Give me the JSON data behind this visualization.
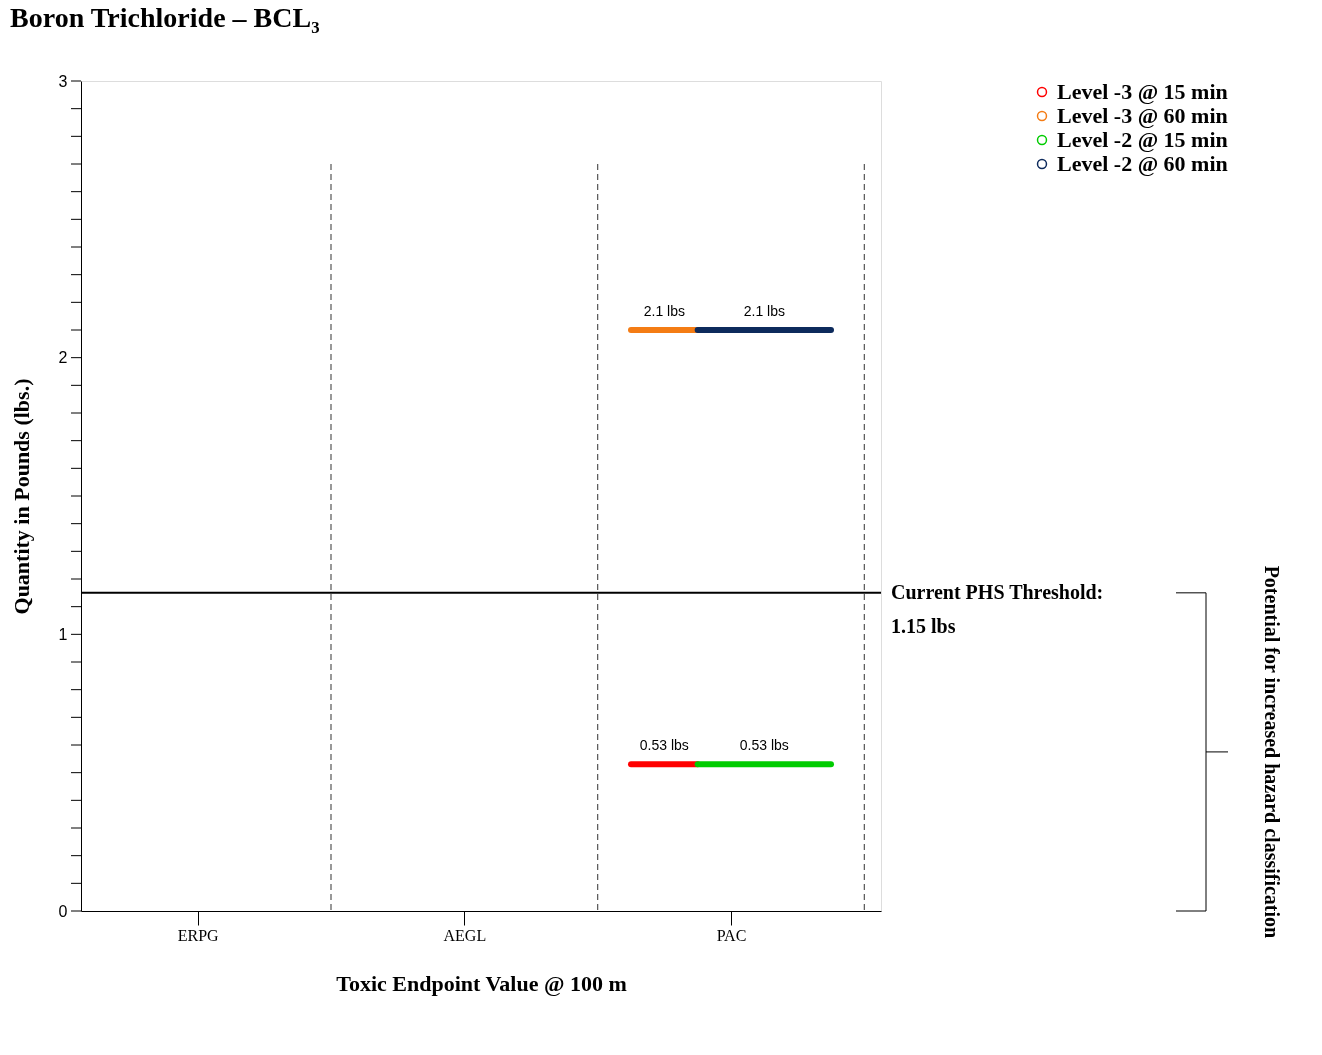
{
  "chart_data": {
    "type": "line",
    "title": "Boron Trichloride – BCL₃",
    "xlabel": "Toxic Endpoint Value @ 100 m",
    "ylabel": "Quantity in Pounds (lbs.)",
    "categories": [
      null,
      null,
      null,
      "ERPG",
      null,
      null,
      null,
      null,
      null,
      null,
      null,
      "AEGL",
      null,
      null,
      null,
      null,
      null,
      null,
      null,
      "PAC",
      null,
      null,
      null,
      null
    ],
    "series": [
      {
        "name": "Level -3 @ 15 min",
        "color": "#ff0000",
        "values": [
          null,
          null,
          null,
          null,
          null,
          null,
          null,
          null,
          null,
          null,
          null,
          null,
          null,
          null,
          null,
          null,
          0.53,
          0.53,
          0.53,
          null,
          null,
          null,
          null,
          null
        ],
        "value_labels": [
          null,
          null,
          null,
          null,
          null,
          null,
          null,
          null,
          null,
          null,
          null,
          null,
          null,
          null,
          null,
          null,
          null,
          "0.53 lbs",
          null,
          null,
          null,
          null,
          null,
          null
        ]
      },
      {
        "name": "Level -3 @ 60 min",
        "color": "#f47c14",
        "values": [
          null,
          null,
          null,
          null,
          null,
          null,
          null,
          null,
          null,
          null,
          null,
          null,
          null,
          null,
          null,
          null,
          2.1,
          2.1,
          2.1,
          null,
          null,
          null,
          null,
          null
        ],
        "value_labels": [
          null,
          null,
          null,
          null,
          null,
          null,
          null,
          null,
          null,
          null,
          null,
          null,
          null,
          null,
          null,
          null,
          null,
          "2.1 lbs",
          null,
          null,
          null,
          null,
          null,
          null
        ]
      },
      {
        "name": "Level -2 @ 15 min",
        "color": "#00cc00",
        "values": [
          null,
          null,
          null,
          null,
          null,
          null,
          null,
          null,
          null,
          null,
          null,
          null,
          null,
          null,
          null,
          null,
          null,
          null,
          0.53,
          0.53,
          0.53,
          0.53,
          0.53,
          null
        ],
        "value_labels": [
          null,
          null,
          null,
          null,
          null,
          null,
          null,
          null,
          null,
          null,
          null,
          null,
          null,
          null,
          null,
          null,
          null,
          null,
          null,
          null,
          "0.53 lbs",
          null,
          null,
          null
        ]
      },
      {
        "name": "Level -2 @ 60 min",
        "color": "#0d2a5c",
        "values": [
          null,
          null,
          null,
          null,
          null,
          null,
          null,
          null,
          null,
          null,
          null,
          null,
          null,
          null,
          null,
          null,
          null,
          null,
          2.1,
          2.1,
          2.1,
          2.1,
          2.1,
          null
        ],
        "value_labels": [
          null,
          null,
          null,
          null,
          null,
          null,
          null,
          null,
          null,
          null,
          null,
          null,
          null,
          null,
          null,
          null,
          null,
          null,
          null,
          null,
          "2.1 lbs",
          null,
          null,
          null
        ]
      }
    ],
    "ylim": [
      0,
      3
    ],
    "yticks": [
      0,
      {
        "value": 0.1,
        "label": null
      },
      {
        "value": 0.2,
        "label": null
      },
      {
        "value": 0.3,
        "label": null
      },
      {
        "value": 0.4,
        "label": null
      },
      {
        "value": 0.5,
        "label": null
      },
      {
        "value": 0.6,
        "label": null
      },
      {
        "value": 0.7,
        "label": null
      },
      {
        "value": 0.8,
        "label": null
      },
      {
        "value": 0.9,
        "label": null
      },
      1,
      {
        "value": 1.1,
        "label": null
      },
      {
        "value": 1.2,
        "label": null
      },
      {
        "value": 1.3,
        "label": null
      },
      {
        "value": 1.4,
        "label": null
      },
      {
        "value": 1.5,
        "label": null
      },
      {
        "value": 1.6,
        "label": null
      },
      {
        "value": 1.7,
        "label": null
      },
      {
        "value": 1.8,
        "label": null
      },
      {
        "value": 1.9,
        "label": null
      },
      2,
      {
        "value": 2.1,
        "label": null
      },
      {
        "value": 2.2,
        "label": null
      },
      {
        "value": 2.3,
        "label": null
      },
      {
        "value": 2.4,
        "label": null
      },
      {
        "value": 2.5,
        "label": null
      },
      {
        "value": 2.6,
        "label": null
      },
      {
        "value": 2.7,
        "label": null
      },
      {
        "value": 2.8,
        "label": null
      },
      {
        "value": 2.9,
        "label": null
      },
      3
    ],
    "ref_lines": [
      {
        "axis": "y",
        "value": 1.15,
        "label": "Current PHS Threshold:\n1.15 lbs",
        "color": "#000000"
      }
    ],
    "annotations": [
      "Potential for increased hazard classification"
    ],
    "grid": "x",
    "legend": "top right"
  }
}
